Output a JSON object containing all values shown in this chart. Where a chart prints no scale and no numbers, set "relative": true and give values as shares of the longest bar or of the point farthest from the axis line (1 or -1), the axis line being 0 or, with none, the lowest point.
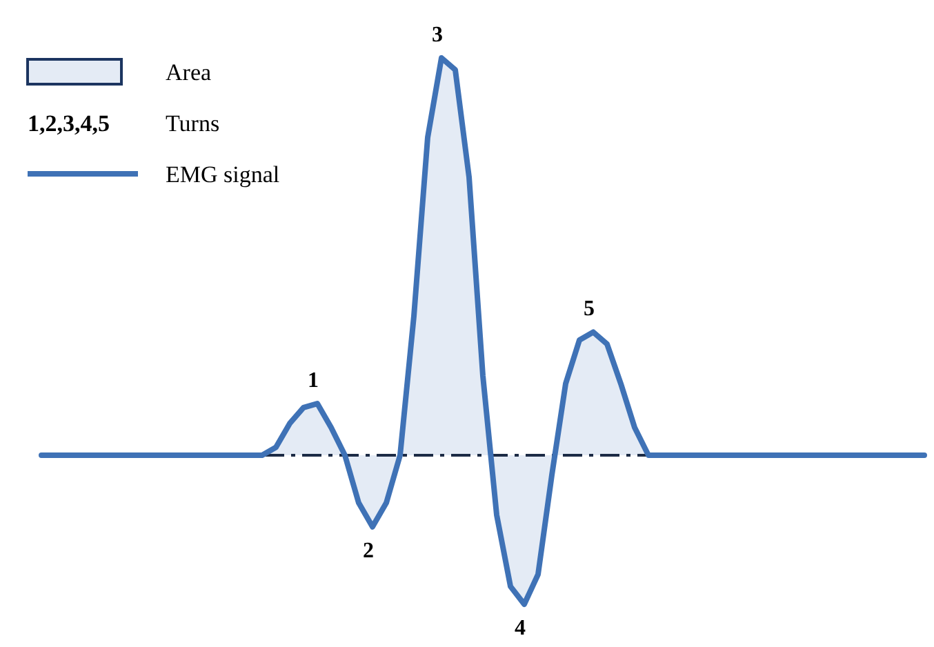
{
  "chart_data": {
    "type": "area",
    "relative": true,
    "categories": [
      null,
      null,
      null,
      null,
      null,
      null,
      null,
      null,
      null,
      null,
      null,
      null,
      null,
      null,
      null,
      null,
      null,
      null,
      null,
      null,
      null,
      null,
      null,
      null,
      null,
      null,
      null,
      null,
      null,
      null,
      null,
      null,
      null,
      null,
      null,
      null,
      null,
      null,
      null,
      null,
      null,
      null,
      null,
      null,
      null,
      null,
      null,
      null,
      null,
      null,
      null,
      null,
      null,
      null,
      null,
      null,
      null,
      null,
      null,
      null,
      null,
      null,
      null,
      null,
      null
    ],
    "series": [
      {
        "name": "EMG signal",
        "color": "#3f72b6",
        "values": [
          0,
          0,
          0,
          0,
          0,
          0,
          0,
          0,
          0,
          0,
          0,
          0,
          0,
          0,
          0,
          0,
          0,
          0.02,
          0.08,
          0.12,
          0.13,
          0.07,
          0,
          -0.12,
          -0.18,
          -0.12,
          0,
          0.35,
          0.8,
          1,
          0.97,
          0.7,
          0.2,
          -0.15,
          -0.33,
          -0.375,
          -0.3,
          -0.05,
          0.18,
          0.29,
          0.31,
          0.28,
          0.18,
          0.07,
          0,
          0,
          0,
          0,
          0,
          0,
          0,
          0,
          0,
          0,
          0,
          0,
          0,
          0,
          0,
          0,
          0,
          0,
          0,
          0,
          0
        ]
      }
    ],
    "annotations": [
      "1",
      "2",
      "3",
      "4",
      "5",
      "Area",
      "1,2,3,4,5",
      "Turns"
    ],
    "legend": "top left",
    "tick_labels": false,
    "line_style": "solid"
  }
}
